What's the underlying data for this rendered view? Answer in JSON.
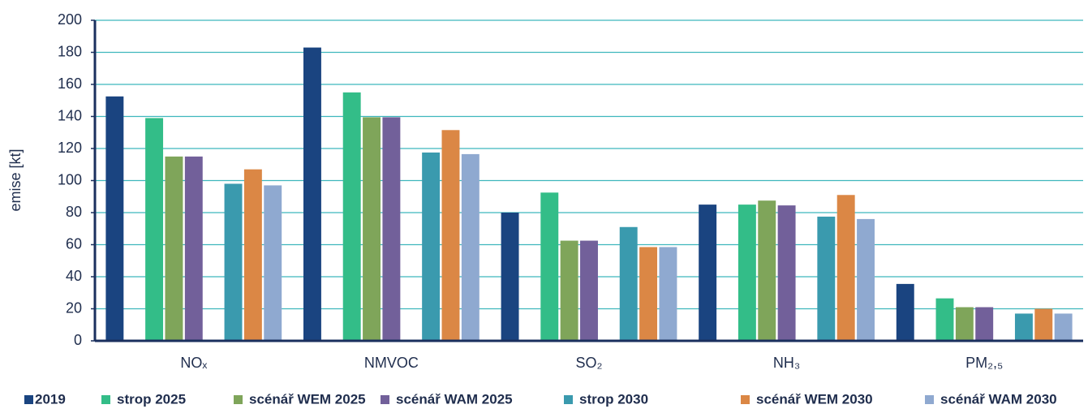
{
  "chart_data": {
    "type": "bar",
    "y_label": "emise [kt]",
    "categories": [
      "NOₓ",
      "NMVOC",
      "SO₂",
      "NH₃",
      "PM₂,₅"
    ],
    "series": [
      {
        "name": "2019",
        "color": "#1a4480",
        "values": [
          152.5,
          183,
          80,
          85,
          35.5
        ]
      },
      {
        "name": "strop 2025",
        "color": "#33bd88",
        "values": [
          139,
          155,
          92.5,
          85,
          26.5
        ]
      },
      {
        "name": "scénář WEM 2025",
        "color": "#7fa55a",
        "values": [
          115,
          139.5,
          62.5,
          87.5,
          21
        ]
      },
      {
        "name": "scénář WAM 2025",
        "color": "#72609a",
        "values": [
          115,
          139.5,
          62.5,
          84.5,
          21
        ]
      },
      {
        "name": "strop 2030",
        "color": "#3a9aae",
        "values": [
          98,
          117.5,
          71,
          77.5,
          17
        ]
      },
      {
        "name": "scénář WEM 2030",
        "color": "#db8745",
        "values": [
          107,
          131.5,
          58.5,
          91,
          20
        ]
      },
      {
        "name": "scénář WAM 2030",
        "color": "#8fa9d0",
        "values": [
          97,
          116.5,
          58.5,
          76,
          17
        ]
      }
    ],
    "ylim": [
      0,
      200
    ],
    "yticks": [
      0,
      20,
      40,
      60,
      80,
      100,
      120,
      140,
      160,
      180,
      200
    ],
    "grid": true,
    "legend": "bottom"
  }
}
